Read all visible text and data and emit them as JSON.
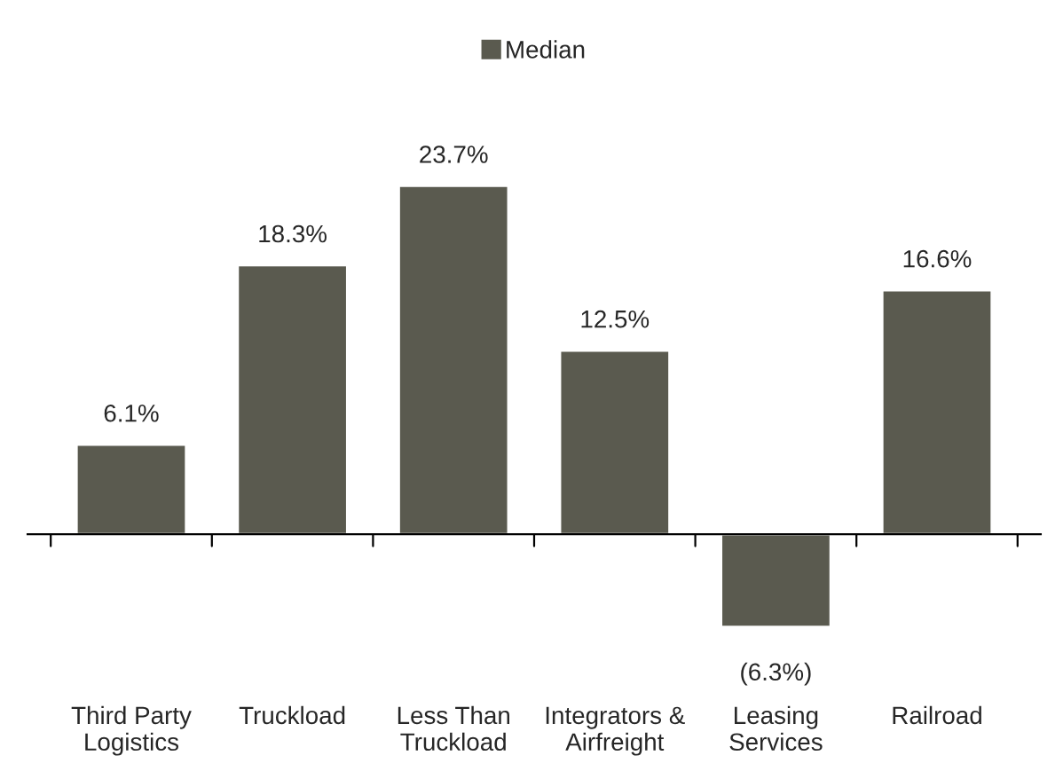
{
  "chart_data": {
    "type": "bar",
    "categories": [
      "Third Party\nLogistics",
      "Truckload",
      "Less Than\nTruckload",
      "Integrators &\nAirfreight",
      "Leasing\nServices",
      "Railroad"
    ],
    "series": [
      {
        "name": "Median",
        "color": "#5a5a4f",
        "values": [
          6.1,
          18.3,
          23.7,
          12.5,
          -6.3,
          16.6
        ],
        "value_labels": [
          "6.1%",
          "18.3%",
          "23.7%",
          "12.5%",
          "(6.3%)",
          "16.6%"
        ]
      }
    ],
    "legend": "top",
    "grid": false
  }
}
